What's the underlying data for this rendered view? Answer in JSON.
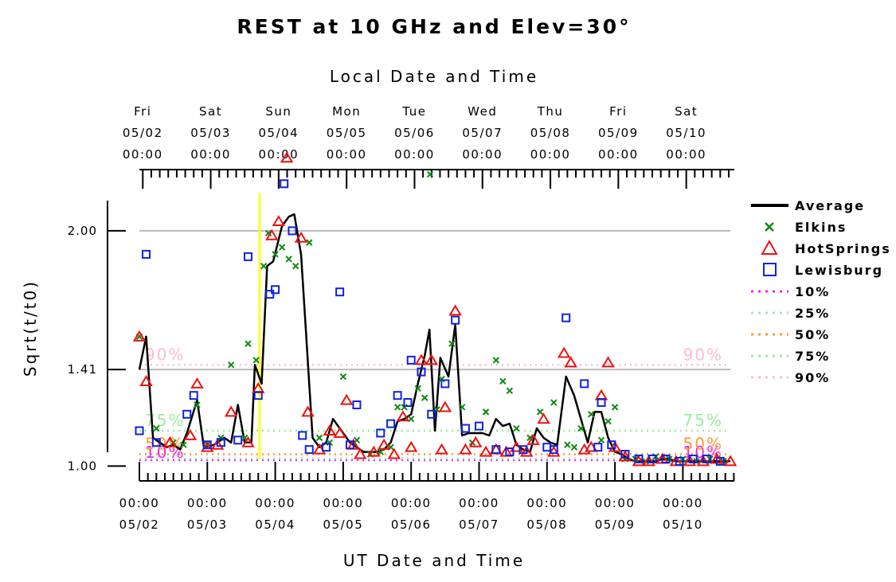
{
  "chart_data": {
    "type": "scatter",
    "title": "REST at 10 GHz and Elev=30°",
    "xlabel": "UT Date and Time",
    "top_xlabel": "Local Date and Time",
    "ylabel": "Sqrt(t/t0)",
    "ylim": [
      0.93,
      2.25
    ],
    "xlim": [
      0,
      8.7
    ],
    "x_unit": "days since 05/02 00:00 UT",
    "yticks": [
      {
        "value": 1.0,
        "label": "1.00"
      },
      {
        "value": 1.41,
        "label": "1.41"
      },
      {
        "value": 2.0,
        "label": "2.00"
      }
    ],
    "bottom_ticks": [
      {
        "day": 0,
        "time": "00:00",
        "date": "05/02"
      },
      {
        "day": 1,
        "time": "00:00",
        "date": "05/03"
      },
      {
        "day": 2,
        "time": "00:00",
        "date": "05/04"
      },
      {
        "day": 3,
        "time": "00:00",
        "date": "05/05"
      },
      {
        "day": 4,
        "time": "00:00",
        "date": "05/06"
      },
      {
        "day": 5,
        "time": "00:00",
        "date": "05/07"
      },
      {
        "day": 6,
        "time": "00:00",
        "date": "05/08"
      },
      {
        "day": 7,
        "time": "00:00",
        "date": "05/09"
      },
      {
        "day": 8,
        "time": "00:00",
        "date": "05/10"
      }
    ],
    "top_ticks": [
      {
        "day": 0.05,
        "dow": "Fri",
        "date": "05/02",
        "time": "00:00"
      },
      {
        "day": 1.05,
        "dow": "Sat",
        "date": "05/03",
        "time": "00:00"
      },
      {
        "day": 2.05,
        "dow": "Sun",
        "date": "05/04",
        "time": "00:00"
      },
      {
        "day": 3.05,
        "dow": "Mon",
        "date": "05/05",
        "time": "00:00"
      },
      {
        "day": 4.05,
        "dow": "Tue",
        "date": "05/06",
        "time": "00:00"
      },
      {
        "day": 5.05,
        "dow": "Wed",
        "date": "05/07",
        "time": "00:00"
      },
      {
        "day": 6.05,
        "dow": "Thu",
        "date": "05/08",
        "time": "00:00"
      },
      {
        "day": 7.05,
        "dow": "Fri",
        "date": "05/09",
        "time": "00:00"
      },
      {
        "day": 8.05,
        "dow": "Sat",
        "date": "05/10",
        "time": "00:00"
      }
    ],
    "gridlines_y": [
      1.41,
      2.0
    ],
    "now_marker_day": 1.77,
    "percentiles": [
      {
        "name": "10%",
        "value": 1.025,
        "color": "#ee22ee"
      },
      {
        "name": "25%",
        "value": 1.032,
        "color": "#aadddd"
      },
      {
        "name": "50%",
        "value": 1.05,
        "color": "#ff9933"
      },
      {
        "name": "75%",
        "value": 1.15,
        "color": "#99ee99"
      },
      {
        "name": "90%",
        "value": 1.43,
        "color": "#ffbbcc"
      }
    ],
    "series": [
      {
        "name": "Average",
        "marker": "line",
        "color": "#000000",
        "points": [
          [
            0,
            1.41
          ],
          [
            0.1,
            1.55
          ],
          [
            0.2,
            1.12
          ],
          [
            0.3,
            1.1
          ],
          [
            0.4,
            1.08
          ],
          [
            0.5,
            1.09
          ],
          [
            0.6,
            1.07
          ],
          [
            0.7,
            1.14
          ],
          [
            0.85,
            1.28
          ],
          [
            0.95,
            1.08
          ],
          [
            1.1,
            1.09
          ],
          [
            1.25,
            1.12
          ],
          [
            1.35,
            1.1
          ],
          [
            1.45,
            1.26
          ],
          [
            1.55,
            1.1
          ],
          [
            1.65,
            1.1
          ],
          [
            1.7,
            1.43
          ],
          [
            1.8,
            1.35
          ],
          [
            1.88,
            1.85
          ],
          [
            1.97,
            1.87
          ],
          [
            2.1,
            2.02
          ],
          [
            2.2,
            2.06
          ],
          [
            2.28,
            2.07
          ],
          [
            2.38,
            1.9
          ],
          [
            2.45,
            1.58
          ],
          [
            2.55,
            1.12
          ],
          [
            2.65,
            1.08
          ],
          [
            2.75,
            1.1
          ],
          [
            2.85,
            1.2
          ],
          [
            2.95,
            1.16
          ],
          [
            3.0,
            1.14
          ],
          [
            3.1,
            1.1
          ],
          [
            3.2,
            1.08
          ],
          [
            3.3,
            1.06
          ],
          [
            3.4,
            1.06
          ],
          [
            3.5,
            1.06
          ],
          [
            3.6,
            1.07
          ],
          [
            3.7,
            1.1
          ],
          [
            3.8,
            1.19
          ],
          [
            3.9,
            1.2
          ],
          [
            4.0,
            1.22
          ],
          [
            4.1,
            1.35
          ],
          [
            4.2,
            1.47
          ],
          [
            4.27,
            1.58
          ],
          [
            4.35,
            1.15
          ],
          [
            4.43,
            1.46
          ],
          [
            4.55,
            1.38
          ],
          [
            4.65,
            1.6
          ],
          [
            4.75,
            1.13
          ],
          [
            4.85,
            1.14
          ],
          [
            4.95,
            1.14
          ],
          [
            5.05,
            1.14
          ],
          [
            5.15,
            1.13
          ],
          [
            5.25,
            1.2
          ],
          [
            5.35,
            1.17
          ],
          [
            5.45,
            1.18
          ],
          [
            5.55,
            1.09
          ],
          [
            5.65,
            1.07
          ],
          [
            5.75,
            1.06
          ],
          [
            5.85,
            1.16
          ],
          [
            5.95,
            1.12
          ],
          [
            6.05,
            1.1
          ],
          [
            6.15,
            1.09
          ],
          [
            6.28,
            1.38
          ],
          [
            6.4,
            1.3
          ],
          [
            6.5,
            1.2
          ],
          [
            6.6,
            1.1
          ],
          [
            6.7,
            1.23
          ],
          [
            6.8,
            1.23
          ],
          [
            6.9,
            1.12
          ],
          [
            7.0,
            1.06
          ],
          [
            7.1,
            1.05
          ],
          [
            7.2,
            1.03
          ],
          [
            7.3,
            1.02
          ],
          [
            7.4,
            1.02
          ],
          [
            7.5,
            1.02
          ],
          [
            7.6,
            1.02
          ],
          [
            7.7,
            1.03
          ],
          [
            7.8,
            1.03
          ],
          [
            7.9,
            1.02
          ],
          [
            8.0,
            1.02
          ],
          [
            8.1,
            1.02
          ],
          [
            8.2,
            1.02
          ],
          [
            8.3,
            1.02
          ],
          [
            8.4,
            1.02
          ],
          [
            8.5,
            1.02
          ],
          [
            8.6,
            1.02
          ],
          [
            8.7,
            1.02
          ]
        ]
      },
      {
        "name": "Elkins",
        "marker": "x",
        "color": "#118811",
        "points": [
          [
            0,
            1.55
          ],
          [
            0.25,
            1.16
          ],
          [
            0.5,
            1.1
          ],
          [
            0.65,
            1.09
          ],
          [
            0.85,
            1.26
          ],
          [
            1.0,
            1.09
          ],
          [
            1.2,
            1.12
          ],
          [
            1.35,
            1.43
          ],
          [
            1.55,
            1.12
          ],
          [
            1.6,
            1.52
          ],
          [
            1.72,
            1.45
          ],
          [
            1.83,
            1.85
          ],
          [
            1.9,
            1.99
          ],
          [
            2.0,
            1.9
          ],
          [
            2.1,
            1.93
          ],
          [
            2.2,
            1.88
          ],
          [
            2.3,
            1.85
          ],
          [
            2.5,
            1.95
          ],
          [
            2.65,
            1.12
          ],
          [
            2.8,
            1.1
          ],
          [
            3.0,
            1.38
          ],
          [
            3.2,
            1.11
          ],
          [
            3.4,
            1.05
          ],
          [
            3.55,
            1.06
          ],
          [
            3.7,
            1.08
          ],
          [
            3.8,
            1.25
          ],
          [
            3.9,
            1.25
          ],
          [
            4.0,
            1.2
          ],
          [
            4.1,
            1.33
          ],
          [
            4.2,
            1.29
          ],
          [
            4.28,
            2.24
          ],
          [
            4.38,
            1.24
          ],
          [
            4.45,
            1.37
          ],
          [
            4.6,
            1.52
          ],
          [
            4.75,
            1.25
          ],
          [
            4.9,
            1.1
          ],
          [
            5.1,
            1.23
          ],
          [
            5.25,
            1.45
          ],
          [
            5.35,
            1.36
          ],
          [
            5.45,
            1.32
          ],
          [
            5.55,
            1.16
          ],
          [
            5.75,
            1.12
          ],
          [
            5.9,
            1.23
          ],
          [
            6.1,
            1.27
          ],
          [
            6.3,
            1.09
          ],
          [
            6.4,
            1.08
          ],
          [
            6.5,
            1.16
          ],
          [
            6.65,
            1.22
          ],
          [
            6.8,
            1.11
          ],
          [
            6.9,
            1.19
          ],
          [
            7.0,
            1.25
          ],
          [
            7.15,
            1.03
          ],
          [
            7.3,
            1.03
          ],
          [
            7.45,
            1.02
          ],
          [
            7.6,
            1.04
          ],
          [
            7.8,
            1.03
          ],
          [
            8.0,
            1.03
          ],
          [
            8.2,
            1.02
          ],
          [
            8.4,
            1.03
          ],
          [
            8.6,
            1.02
          ]
        ]
      },
      {
        "name": "HotSprings",
        "marker": "triangle",
        "color": "#ee1111",
        "points": [
          [
            0,
            1.55
          ],
          [
            0.1,
            1.36
          ],
          [
            0.45,
            1.1
          ],
          [
            0.75,
            1.13
          ],
          [
            0.85,
            1.35
          ],
          [
            1.0,
            1.08
          ],
          [
            1.15,
            1.09
          ],
          [
            1.35,
            1.23
          ],
          [
            1.6,
            1.1
          ],
          [
            1.75,
            1.33
          ],
          [
            1.95,
            1.98
          ],
          [
            2.05,
            2.04
          ],
          [
            2.17,
            2.31
          ],
          [
            2.38,
            1.97
          ],
          [
            2.48,
            1.23
          ],
          [
            2.65,
            1.07
          ],
          [
            2.8,
            1.15
          ],
          [
            2.95,
            1.14
          ],
          [
            3.05,
            1.28
          ],
          [
            3.15,
            1.09
          ],
          [
            3.25,
            1.05
          ],
          [
            3.45,
            1.06
          ],
          [
            3.6,
            1.09
          ],
          [
            3.75,
            1.05
          ],
          [
            3.88,
            1.21
          ],
          [
            4.0,
            1.08
          ],
          [
            4.15,
            1.45
          ],
          [
            4.3,
            1.45
          ],
          [
            4.45,
            1.07
          ],
          [
            4.5,
            1.25
          ],
          [
            4.65,
            1.66
          ],
          [
            4.8,
            1.07
          ],
          [
            4.95,
            1.1
          ],
          [
            5.1,
            1.06
          ],
          [
            5.25,
            1.07
          ],
          [
            5.4,
            1.06
          ],
          [
            5.55,
            1.08
          ],
          [
            5.7,
            1.06
          ],
          [
            5.8,
            1.11
          ],
          [
            5.95,
            1.2
          ],
          [
            6.1,
            1.06
          ],
          [
            6.25,
            1.48
          ],
          [
            6.35,
            1.44
          ],
          [
            6.55,
            1.07
          ],
          [
            6.65,
            1.08
          ],
          [
            6.8,
            1.3
          ],
          [
            6.9,
            1.44
          ],
          [
            7.0,
            1.08
          ],
          [
            7.15,
            1.04
          ],
          [
            7.35,
            1.02
          ],
          [
            7.5,
            1.02
          ],
          [
            7.7,
            1.03
          ],
          [
            7.9,
            1.02
          ],
          [
            8.1,
            1.02
          ],
          [
            8.3,
            1.02
          ],
          [
            8.5,
            1.03
          ],
          [
            8.7,
            1.02
          ]
        ]
      },
      {
        "name": "Lewisburg",
        "marker": "square",
        "color": "#1122dd",
        "points": [
          [
            0,
            1.15
          ],
          [
            0.1,
            1.9
          ],
          [
            0.25,
            1.1
          ],
          [
            0.7,
            1.22
          ],
          [
            0.8,
            1.3
          ],
          [
            1.0,
            1.09
          ],
          [
            1.2,
            1.1
          ],
          [
            1.45,
            1.11
          ],
          [
            1.6,
            1.89
          ],
          [
            1.75,
            1.3
          ],
          [
            1.92,
            1.73
          ],
          [
            2.0,
            1.75
          ],
          [
            2.13,
            2.2
          ],
          [
            2.25,
            2.0
          ],
          [
            2.4,
            1.13
          ],
          [
            2.5,
            1.07
          ],
          [
            2.75,
            1.08
          ],
          [
            2.95,
            1.74
          ],
          [
            3.1,
            1.09
          ],
          [
            3.2,
            1.26
          ],
          [
            3.55,
            1.14
          ],
          [
            3.7,
            1.18
          ],
          [
            3.8,
            1.3
          ],
          [
            3.95,
            1.27
          ],
          [
            4.0,
            1.45
          ],
          [
            4.15,
            1.4
          ],
          [
            4.3,
            1.22
          ],
          [
            4.5,
            1.35
          ],
          [
            4.65,
            1.62
          ],
          [
            4.8,
            1.16
          ],
          [
            5.0,
            1.17
          ],
          [
            5.25,
            1.07
          ],
          [
            5.45,
            1.06
          ],
          [
            5.65,
            1.07
          ],
          [
            6.0,
            1.08
          ],
          [
            6.1,
            1.07
          ],
          [
            6.28,
            1.63
          ],
          [
            6.55,
            1.35
          ],
          [
            6.75,
            1.08
          ],
          [
            6.8,
            1.27
          ],
          [
            6.95,
            1.09
          ],
          [
            7.15,
            1.05
          ],
          [
            7.35,
            1.03
          ],
          [
            7.55,
            1.03
          ],
          [
            7.75,
            1.03
          ],
          [
            7.95,
            1.02
          ],
          [
            8.15,
            1.03
          ],
          [
            8.35,
            1.03
          ],
          [
            8.55,
            1.02
          ]
        ]
      }
    ]
  }
}
